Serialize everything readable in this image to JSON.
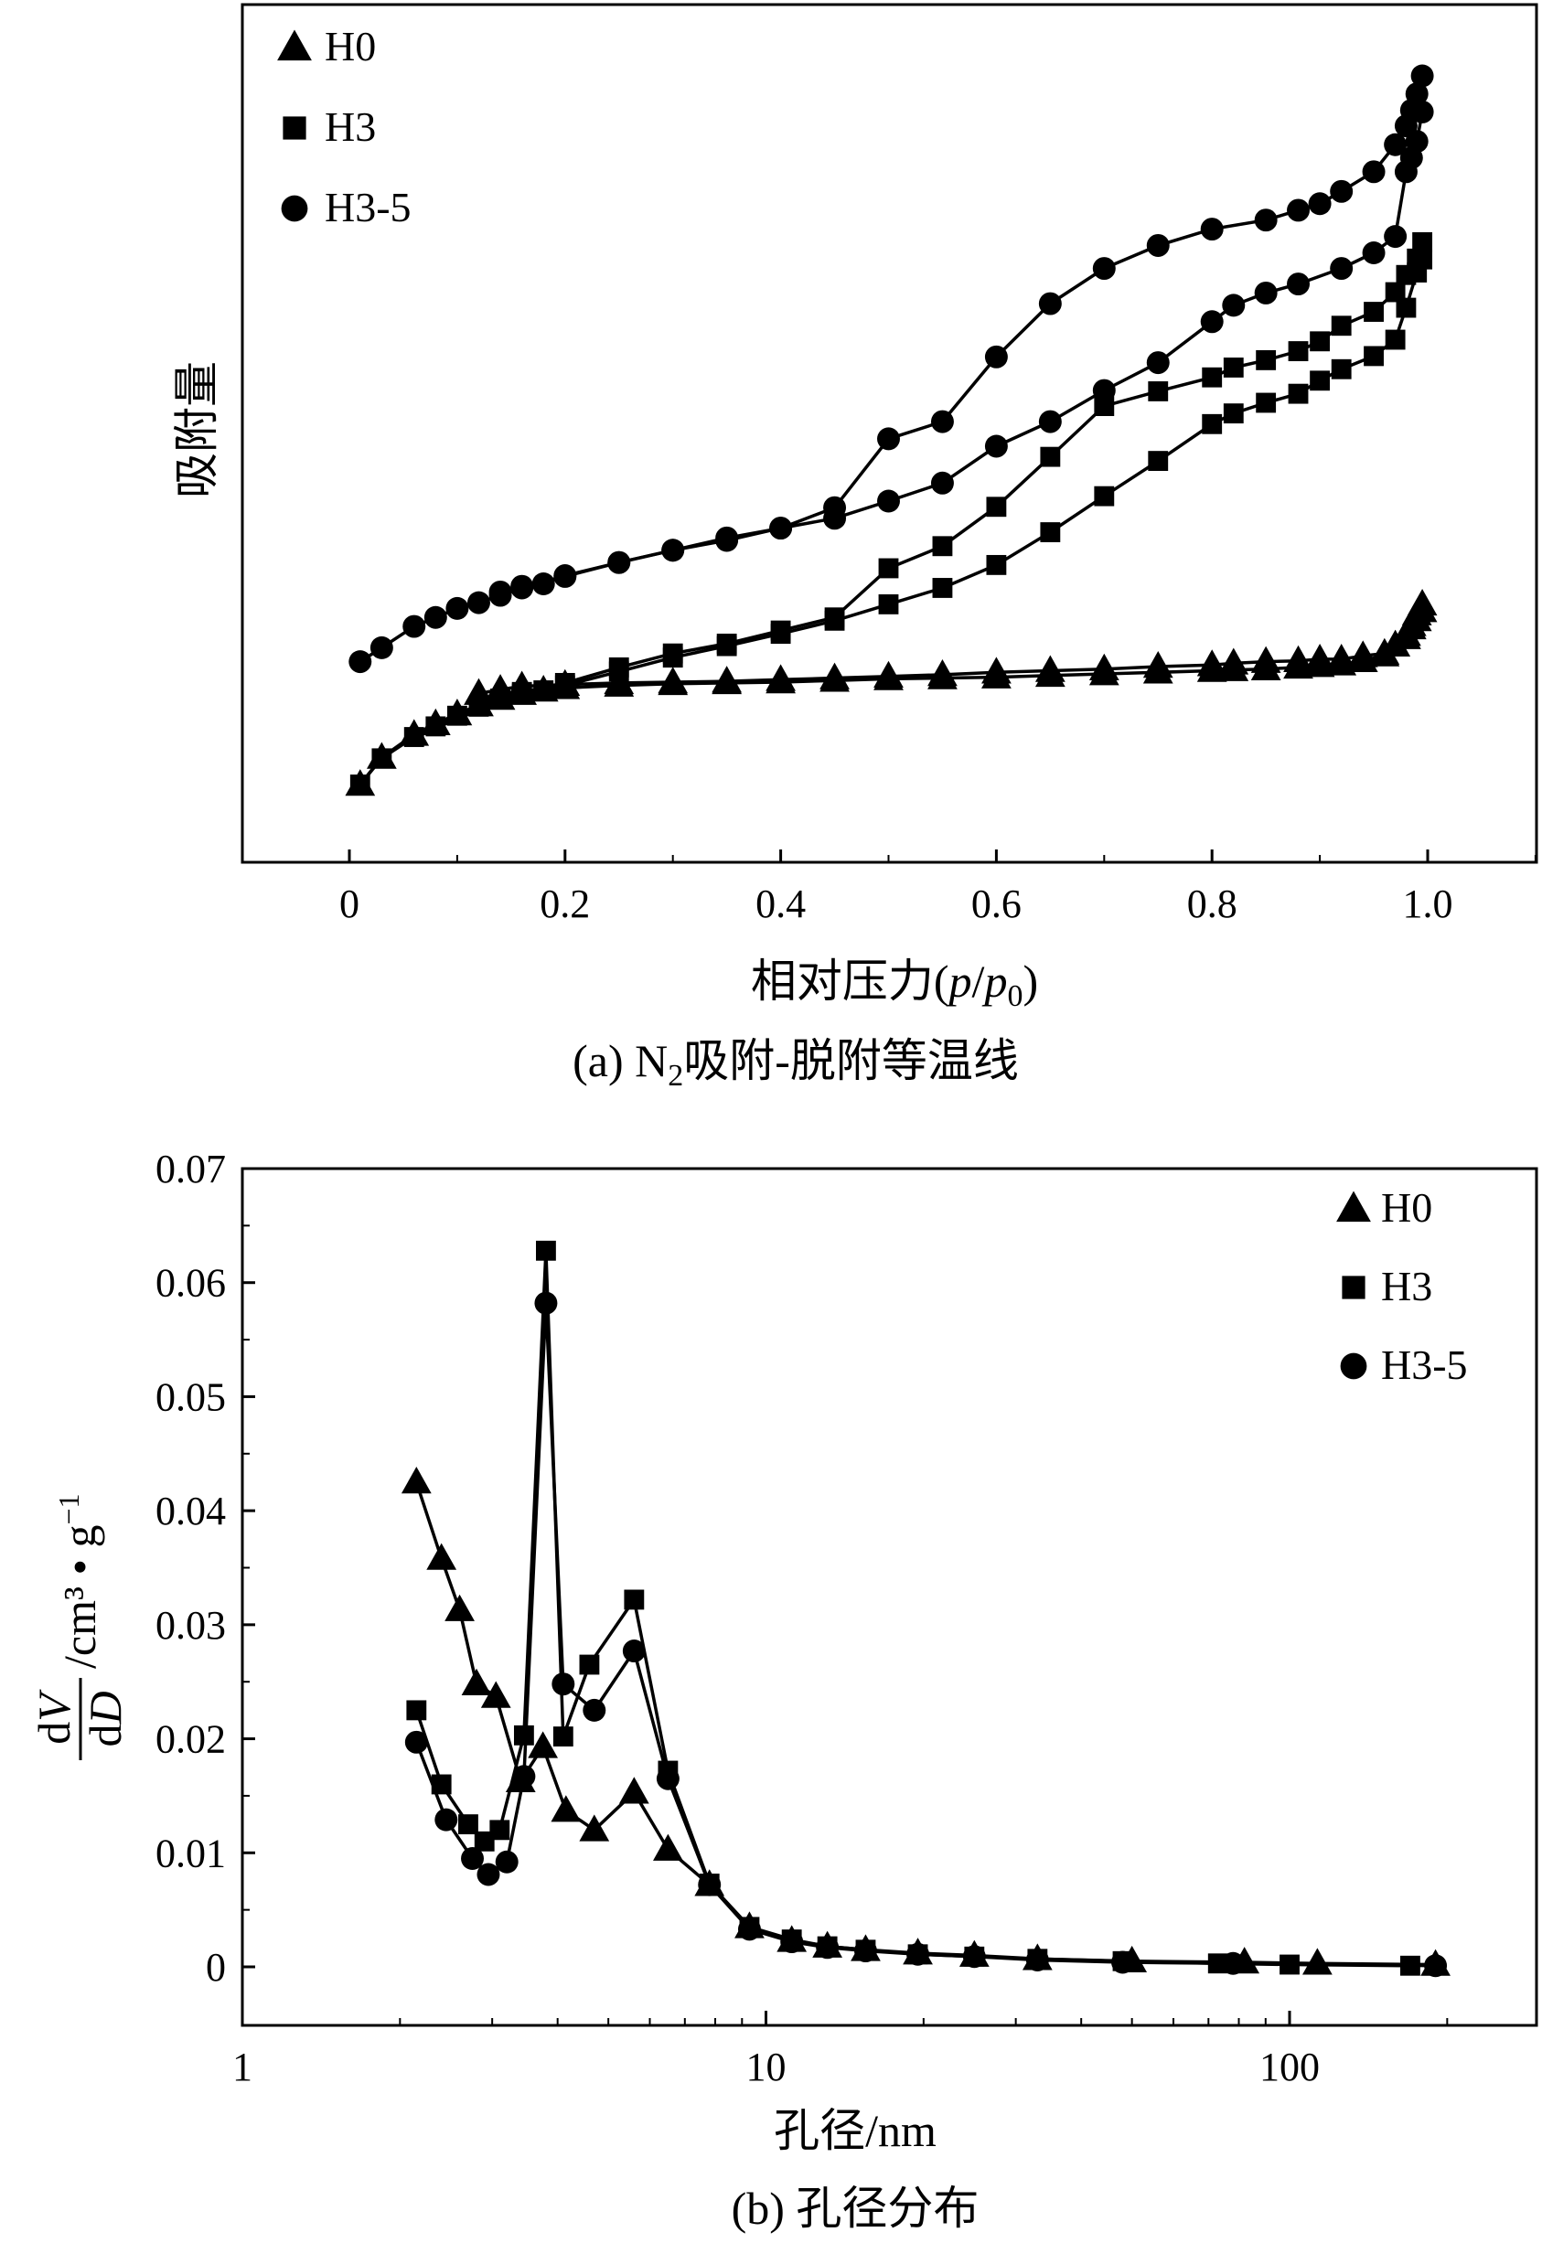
{
  "chart_data": [
    {
      "type": "line",
      "panel": "a",
      "caption_prefix": "(a) N",
      "caption_sub": "2",
      "caption_rest": "吸附-脱附等温线",
      "xlabel_prefix": "相对压力(",
      "xlabel_p": "p",
      "xlabel_slash": "/",
      "xlabel_p0": "p",
      "xlabel_p0_sub": "0",
      "xlabel_close": ")",
      "ylabel": "吸附量",
      "xlim": [
        -0.1,
        1.1
      ],
      "ylim": [
        0,
        100
      ],
      "xticks": [
        "0",
        "0.2",
        "0.4",
        "0.6",
        "0.8",
        "1.0"
      ],
      "xtick_values": [
        0,
        0.2,
        0.4,
        0.6,
        0.8,
        1.0
      ],
      "legend_position": "top-left",
      "legend": [
        {
          "label": "H0",
          "marker": "triangle"
        },
        {
          "label": "H3",
          "marker": "square"
        },
        {
          "label": "H3-5",
          "marker": "circle"
        }
      ],
      "series": [
        {
          "name": "H0 adsorption",
          "marker": "triangle",
          "x": [
            0.01,
            0.03,
            0.06,
            0.08,
            0.1,
            0.12,
            0.14,
            0.16,
            0.18,
            0.2,
            0.25,
            0.3,
            0.35,
            0.4,
            0.45,
            0.5,
            0.55,
            0.6,
            0.65,
            0.7,
            0.75,
            0.8,
            0.82,
            0.85,
            0.88,
            0.9,
            0.92,
            0.94,
            0.96,
            0.97,
            0.98,
            0.985,
            0.99,
            0.995
          ],
          "y": [
            9.5,
            12.8,
            15.6,
            16.9,
            18.1,
            19.2,
            20.0,
            20.6,
            21.0,
            21.3,
            21.6,
            21.8,
            21.9,
            22.0,
            22.2,
            22.4,
            22.5,
            22.6,
            22.8,
            23.0,
            23.2,
            23.4,
            23.5,
            23.6,
            23.8,
            24.0,
            24.2,
            24.6,
            25.3,
            26.5,
            27.8,
            29.0,
            30.3,
            31.5
          ]
        },
        {
          "name": "H0 desorption",
          "marker": "triangle",
          "x": [
            0.995,
            0.99,
            0.985,
            0.98,
            0.97,
            0.96,
            0.94,
            0.92,
            0.9,
            0.88,
            0.85,
            0.82,
            0.8,
            0.75,
            0.7,
            0.65,
            0.6,
            0.55,
            0.5,
            0.45,
            0.4,
            0.35,
            0.3,
            0.25,
            0.2,
            0.16,
            0.14,
            0.12
          ],
          "y": [
            30.7,
            29.6,
            28.6,
            27.4,
            26.5,
            25.5,
            25.2,
            24.8,
            24.8,
            24.6,
            24.5,
            24.3,
            24.1,
            23.9,
            23.6,
            23.4,
            23.2,
            22.9,
            22.7,
            22.5,
            22.3,
            22.1,
            22.0,
            21.9,
            21.7,
            21.5,
            21.1,
            20.6
          ]
        },
        {
          "name": "H3 adsorption",
          "marker": "square",
          "x": [
            0.01,
            0.03,
            0.06,
            0.08,
            0.1,
            0.12,
            0.14,
            0.16,
            0.18,
            0.2,
            0.25,
            0.3,
            0.35,
            0.4,
            0.45,
            0.5,
            0.55,
            0.6,
            0.65,
            0.7,
            0.75,
            0.8,
            0.82,
            0.85,
            0.88,
            0.9,
            0.92,
            0.95,
            0.97,
            0.98,
            0.99,
            0.995
          ],
          "y": [
            9.5,
            12.7,
            15.3,
            16.6,
            17.9,
            19.0,
            20.0,
            20.6,
            21.0,
            21.6,
            23.3,
            25.0,
            26.4,
            27.9,
            29.5,
            31.5,
            33.5,
            36.3,
            40.3,
            44.7,
            49.0,
            53.5,
            54.8,
            56.1,
            57.2,
            58.8,
            60.2,
            61.8,
            63.8,
            67.7,
            72.0,
            73.6
          ]
        },
        {
          "name": "H3 desorption",
          "marker": "square",
          "x": [
            0.995,
            0.99,
            0.98,
            0.97,
            0.95,
            0.92,
            0.9,
            0.88,
            0.85,
            0.82,
            0.8,
            0.75,
            0.7,
            0.65,
            0.6,
            0.55,
            0.5,
            0.45,
            0.4,
            0.35,
            0.3,
            0.25,
            0.2,
            0.16
          ],
          "y": [
            75.7,
            73.7,
            71.7,
            69.6,
            67.2,
            65.5,
            63.6,
            62.4,
            61.3,
            60.4,
            59.2,
            57.5,
            55.7,
            49.5,
            43.4,
            38.6,
            35.9,
            29.9,
            28.3,
            26.7,
            25.5,
            23.8,
            21.9,
            20.8
          ]
        },
        {
          "name": "H3-5 adsorption",
          "marker": "circle",
          "x": [
            0.01,
            0.03,
            0.06,
            0.08,
            0.1,
            0.12,
            0.14,
            0.16,
            0.18,
            0.2,
            0.25,
            0.3,
            0.35,
            0.4,
            0.45,
            0.5,
            0.55,
            0.6,
            0.65,
            0.7,
            0.75,
            0.8,
            0.82,
            0.85,
            0.88,
            0.92,
            0.95,
            0.97,
            0.98,
            0.985,
            0.99,
            0.995
          ],
          "y": [
            24.5,
            26.2,
            28.8,
            29.9,
            31.0,
            31.7,
            32.6,
            33.5,
            34.0,
            35.0,
            36.6,
            38.1,
            39.3,
            40.8,
            42.0,
            44.1,
            46.3,
            50.8,
            53.8,
            57.6,
            61.0,
            66.0,
            68.0,
            69.5,
            70.6,
            72.5,
            74.4,
            76.4,
            84.3,
            86.0,
            88.0,
            91.6
          ]
        },
        {
          "name": "H3-5 desorption",
          "marker": "circle",
          "x": [
            0.995,
            0.99,
            0.985,
            0.98,
            0.97,
            0.95,
            0.92,
            0.9,
            0.88,
            0.85,
            0.8,
            0.75,
            0.7,
            0.65,
            0.6,
            0.55,
            0.5,
            0.45,
            0.4,
            0.35,
            0.3,
            0.25,
            0.2,
            0.16,
            0.14
          ],
          "y": [
            96.0,
            93.8,
            91.8,
            89.9,
            87.6,
            84.3,
            81.9,
            80.4,
            79.6,
            78.4,
            77.3,
            75.3,
            72.5,
            68.2,
            61.7,
            53.8,
            51.7,
            43.3,
            40.8,
            39.6,
            38.1,
            36.6,
            34.9,
            33.7,
            33.0
          ]
        }
      ]
    },
    {
      "type": "line",
      "panel": "b",
      "caption": "(b) 孔径分布",
      "xlabel": "孔径/nm",
      "ylabel_num": "dV",
      "ylabel_den": "dD",
      "ylabel_unit": "/cm³ • g",
      "ylabel_unit_sup": "−1",
      "xscale": "log",
      "xlim": [
        1,
        300
      ],
      "ylim": [
        -0.005,
        0.07
      ],
      "xticks": [
        "1",
        "10",
        "100"
      ],
      "xtick_values": [
        1,
        10,
        100
      ],
      "yticks": [
        "0",
        "0.01",
        "0.02",
        "0.03",
        "0.04",
        "0.05",
        "0.06",
        "0.07"
      ],
      "ytick_values": [
        0,
        0.01,
        0.02,
        0.03,
        0.04,
        0.05,
        0.06,
        0.07
      ],
      "legend_position": "top-right",
      "legend": [
        {
          "label": "H0",
          "marker": "triangle"
        },
        {
          "label": "H3",
          "marker": "square"
        },
        {
          "label": "H3-5",
          "marker": "circle"
        }
      ],
      "series": [
        {
          "name": "H0",
          "marker": "triangle",
          "x": [
            2.15,
            2.4,
            2.6,
            2.8,
            3.05,
            3.4,
            3.75,
            4.15,
            4.7,
            5.6,
            6.5,
            7.8,
            9.3,
            11.2,
            13.1,
            15.5,
            19.5,
            25,
            33,
            50,
            82,
            113,
            190
          ],
          "y": [
            0.0425,
            0.0358,
            0.0313,
            0.0248,
            0.0237,
            0.0163,
            0.0193,
            0.0137,
            0.012,
            0.0153,
            0.0103,
            0.0072,
            0.0035,
            0.0023,
            0.0018,
            0.0015,
            0.0012,
            0.001,
            0.0007,
            0.0005,
            0.0004,
            0.0003,
            0.0002
          ]
        },
        {
          "name": "H3",
          "marker": "square",
          "x": [
            2.15,
            2.4,
            2.7,
            2.9,
            3.1,
            3.45,
            3.8,
            4.1,
            4.6,
            5.6,
            6.5,
            7.8,
            9.3,
            11.2,
            13.1,
            15.5,
            19.5,
            25,
            33,
            48,
            73,
            100,
            170
          ],
          "y": [
            0.0225,
            0.016,
            0.0125,
            0.011,
            0.012,
            0.0203,
            0.0628,
            0.0202,
            0.0265,
            0.0322,
            0.0172,
            0.0073,
            0.0035,
            0.0024,
            0.0018,
            0.0015,
            0.0011,
            0.0009,
            0.0007,
            0.0005,
            0.0003,
            0.0002,
            0.0001
          ]
        },
        {
          "name": "H3-5",
          "marker": "circle",
          "x": [
            2.15,
            2.45,
            2.75,
            2.95,
            3.2,
            3.45,
            3.8,
            4.1,
            4.7,
            5.6,
            6.5,
            7.8,
            9.3,
            11.2,
            13.1,
            15.5,
            19.5,
            25,
            33,
            48,
            78,
            190
          ],
          "y": [
            0.0197,
            0.0129,
            0.0095,
            0.0081,
            0.0092,
            0.0167,
            0.0582,
            0.0248,
            0.0225,
            0.0277,
            0.0165,
            0.0072,
            0.0033,
            0.0022,
            0.0017,
            0.0014,
            0.0011,
            0.0009,
            0.0006,
            0.0004,
            0.0003,
            0.0001
          ]
        }
      ]
    }
  ]
}
